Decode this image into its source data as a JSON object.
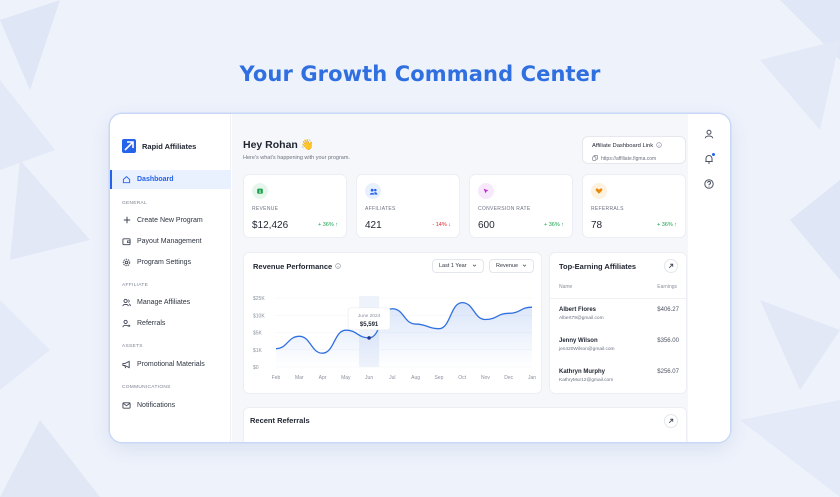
{
  "headline": "Your Growth Command Center",
  "brand": {
    "name": "Rapid Affiliates"
  },
  "nav": {
    "active": "Dashboard",
    "sections": [
      {
        "title": "GENERAL",
        "items": [
          "Create New Program",
          "Payout Management",
          "Program Settings"
        ]
      },
      {
        "title": "AFFILIATE",
        "items": [
          "Manage Affiliates",
          "Referrals"
        ]
      },
      {
        "title": "ASSETS",
        "items": [
          "Promotional Materials"
        ]
      },
      {
        "title": "COMMUNICATIONS",
        "items": [
          "Notifications"
        ]
      }
    ]
  },
  "header": {
    "greeting": "Hey Rohan 👋",
    "subtitle": "Here's what's happening with your program.",
    "link_title": "Affiliate Dashboard Link",
    "link_url": "https://affiliate.figma.com"
  },
  "stats": [
    {
      "label": "REVENUE",
      "value": "$12,426",
      "delta": "+ 36%",
      "trend": "up",
      "color": "#16a34a",
      "bg": "#e7f6ec"
    },
    {
      "label": "AFFILIATES",
      "value": "421",
      "delta": "- 14%",
      "trend": "down",
      "color": "#2563eb",
      "bg": "#e8effd"
    },
    {
      "label": "CONVERSION RATE",
      "value": "600",
      "delta": "+ 36%",
      "trend": "up",
      "color": "#c026d3",
      "bg": "#f8e8fb"
    },
    {
      "label": "REFERRALS",
      "value": "78",
      "delta": "+ 36%",
      "trend": "up",
      "color": "#ea8a0c",
      "bg": "#fdf1e0"
    }
  ],
  "chart": {
    "title": "Revenue Performance",
    "range_select": "Last 1 Year",
    "metric_select": "Revenue",
    "tooltip_label": "June 2024",
    "tooltip_value": "$5,591"
  },
  "chart_data": {
    "type": "area",
    "title": "Revenue Performance",
    "categories": [
      "Feb",
      "Mar",
      "Apr",
      "May",
      "Jun",
      "Jul",
      "Aug",
      "Sep",
      "Oct",
      "Nov",
      "Dec",
      "Jan"
    ],
    "y_ticks": [
      "$0",
      "$1K",
      "$5K",
      "$10K",
      "$25K"
    ],
    "series": [
      {
        "values": [
          1.2,
          2.0,
          0.9,
          2.4,
          1.9,
          3.8,
          2.8,
          2.5,
          4.2,
          3.1,
          3.5,
          3.9
        ]
      }
    ],
    "highlight": {
      "category": "Jun",
      "label": "June 2024",
      "value": "$5,591"
    },
    "color": "#2f6fe0"
  },
  "top_earning": {
    "title": "Top-Earning Affiliates",
    "col_name": "Name",
    "col_earnings": "Earnings",
    "rows": [
      {
        "name": "Albert Flores",
        "email": "Albert79@gmail.com",
        "amount": "$406.27"
      },
      {
        "name": "Jenny Wilson",
        "email": "jen420Wilson@gmail.com",
        "amount": "$356.00"
      },
      {
        "name": "Kathryn Murphy",
        "email": "KathryMur12@gmail.com",
        "amount": "$256.07"
      }
    ]
  },
  "recent": {
    "title": "Recent Referrals"
  }
}
